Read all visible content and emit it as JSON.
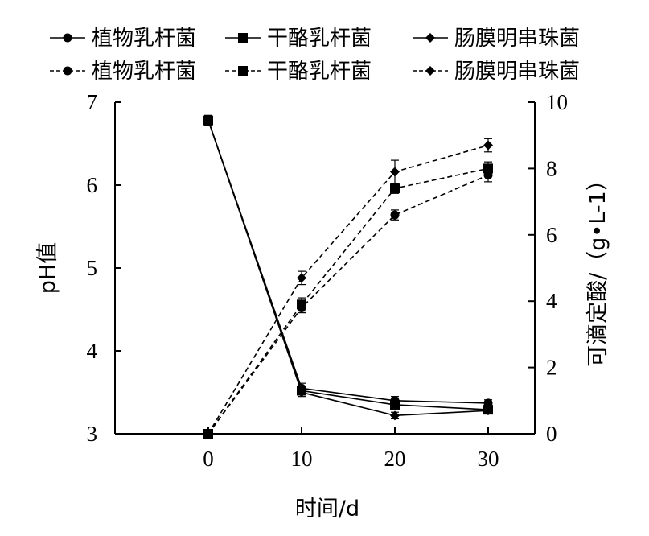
{
  "chart_data": {
    "type": "line",
    "xlabel": "时间/d",
    "ylabel_left": "pH值",
    "ylabel_right": "可滴定酸/（g•L-1）",
    "x": [
      0,
      10,
      20,
      30
    ],
    "x_ticks": [
      "0",
      "10",
      "20",
      "30"
    ],
    "x_range": [
      -10,
      35
    ],
    "y_left_range": [
      3,
      7
    ],
    "y_left_ticks": [
      "3",
      "4",
      "5",
      "6",
      "7"
    ],
    "y_right_range": [
      0,
      10
    ],
    "y_right_ticks": [
      "0",
      "2",
      "4",
      "6",
      "8",
      "10"
    ],
    "grid": false,
    "legend_position": "top",
    "series": [
      {
        "name": "植物乳杆菌",
        "axis": "left",
        "style": "solid",
        "marker": "circle",
        "values": [
          6.78,
          3.55,
          3.4,
          3.37
        ],
        "errors": [
          0.06,
          0.06,
          0.05,
          0.04
        ]
      },
      {
        "name": "干酪乳杆菌",
        "axis": "left",
        "style": "solid",
        "marker": "square",
        "values": [
          6.78,
          3.52,
          3.35,
          3.29
        ],
        "errors": [
          0.06,
          0.05,
          0.05,
          0.04
        ]
      },
      {
        "name": "肠膜明串珠菌",
        "axis": "left",
        "style": "solid",
        "marker": "diamond",
        "values": [
          6.78,
          3.5,
          3.22,
          3.28
        ],
        "errors": [
          0.06,
          0.05,
          0.04,
          0.04
        ]
      },
      {
        "name": "植物乳杆菌",
        "axis": "right",
        "style": "dashed",
        "marker": "circle",
        "values": [
          0,
          3.8,
          6.6,
          7.8
        ],
        "errors": [
          0.1,
          0.15,
          0.15,
          0.2
        ]
      },
      {
        "name": "干酪乳杆菌",
        "axis": "right",
        "style": "dashed",
        "marker": "square",
        "values": [
          0,
          3.9,
          7.4,
          8.0
        ],
        "errors": [
          0.1,
          0.2,
          0.15,
          0.2
        ]
      },
      {
        "name": "肠膜明串珠菌",
        "axis": "right",
        "style": "dashed",
        "marker": "diamond",
        "values": [
          0,
          4.7,
          7.9,
          8.7
        ],
        "errors": [
          0.1,
          0.2,
          0.35,
          0.2
        ]
      }
    ]
  }
}
